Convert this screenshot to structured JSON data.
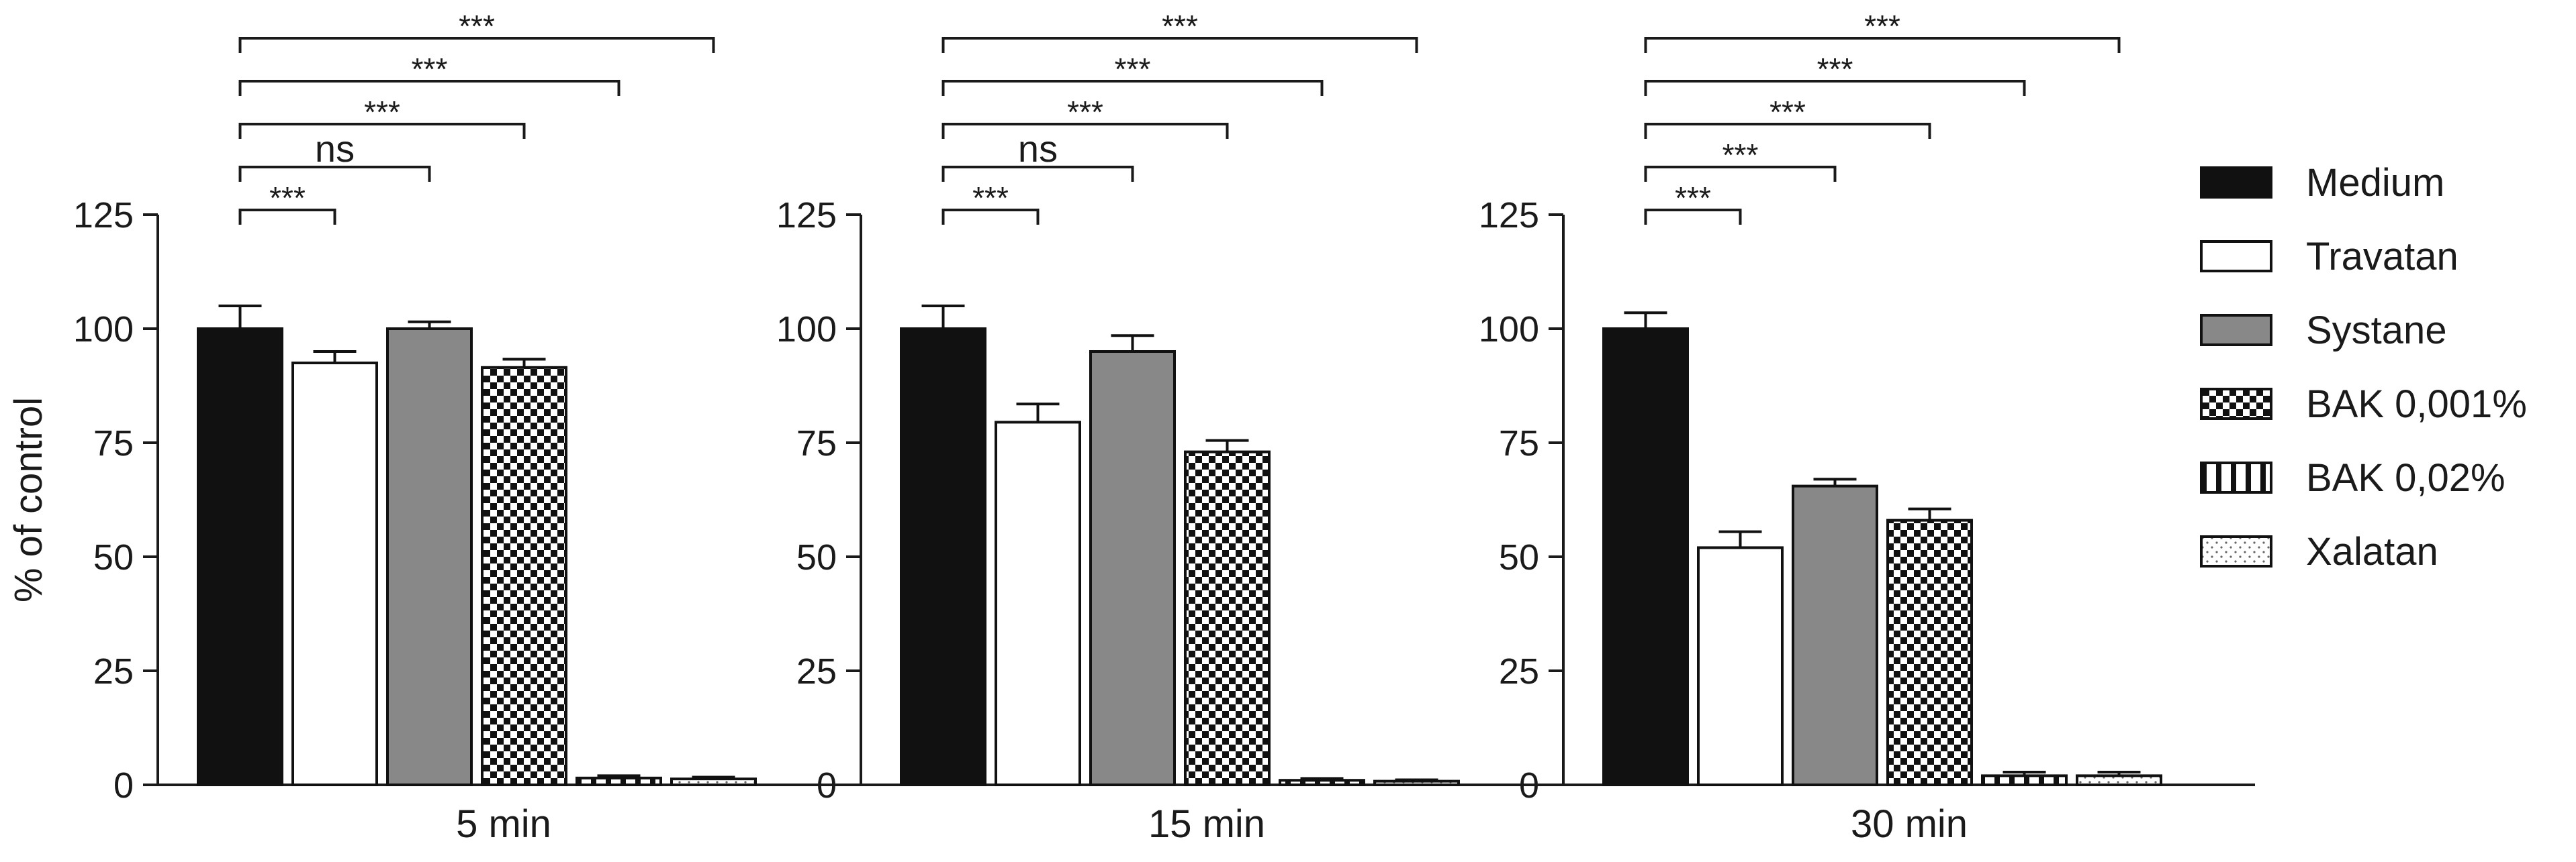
{
  "chart_data": {
    "type": "bar",
    "ylabel": "% of control",
    "ylim": [
      0,
      125
    ],
    "yticks": [
      0,
      25,
      50,
      75,
      100,
      125
    ],
    "series": [
      {
        "name": "Medium",
        "fill": "#111111",
        "pattern": "solid"
      },
      {
        "name": "Travatan",
        "fill": "#ffffff",
        "pattern": "solid"
      },
      {
        "name": "Systane",
        "fill": "#888888",
        "pattern": "solid"
      },
      {
        "name": "BAK 0,001%",
        "fill": "#ffffff",
        "pattern": "checker"
      },
      {
        "name": "BAK 0,02%",
        "fill": "#ffffff",
        "pattern": "vstripe"
      },
      {
        "name": "Xalatan",
        "fill": "#ffffff",
        "pattern": "dots"
      }
    ],
    "panels": [
      {
        "label": "5 min",
        "values": [
          100,
          92.5,
          100,
          91.5,
          1.5,
          1.3
        ],
        "errors": [
          5,
          2.5,
          1.5,
          1.8,
          0.5,
          0.4
        ],
        "comparisons": [
          {
            "to": 1,
            "label": "***"
          },
          {
            "to": 2,
            "label": "ns"
          },
          {
            "to": 3,
            "label": "***"
          },
          {
            "to": 4,
            "label": "***"
          },
          {
            "to": 5,
            "label": "***"
          }
        ]
      },
      {
        "label": "15 min",
        "values": [
          100,
          79.5,
          95,
          73,
          1,
          0.8
        ],
        "errors": [
          5,
          4,
          3.5,
          2.5,
          0.4,
          0.3
        ],
        "comparisons": [
          {
            "to": 1,
            "label": "***"
          },
          {
            "to": 2,
            "label": "ns"
          },
          {
            "to": 3,
            "label": "***"
          },
          {
            "to": 4,
            "label": "***"
          },
          {
            "to": 5,
            "label": "***"
          }
        ]
      },
      {
        "label": "30 min",
        "values": [
          100,
          52,
          65.5,
          58,
          2,
          2
        ],
        "errors": [
          3.5,
          3.5,
          1.5,
          2.5,
          0.8,
          0.8
        ],
        "comparisons": [
          {
            "to": 1,
            "label": "***"
          },
          {
            "to": 2,
            "label": "***"
          },
          {
            "to": 3,
            "label": "***"
          },
          {
            "to": 4,
            "label": "***"
          },
          {
            "to": 5,
            "label": "***"
          }
        ]
      }
    ],
    "legend_position": "right"
  }
}
